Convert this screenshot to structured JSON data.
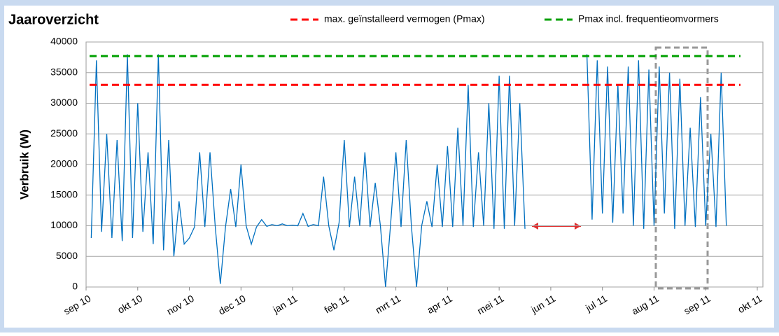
{
  "chart_data": {
    "type": "line",
    "title": "Jaaroverzicht",
    "y_label": "Verbruik (W)",
    "xlim": [
      0,
      13
    ],
    "xticks": [
      {
        "value": 0,
        "label": "sep 10"
      },
      {
        "value": 1,
        "label": "okt 10"
      },
      {
        "value": 2,
        "label": "nov 10"
      },
      {
        "value": 3,
        "label": "dec 10"
      },
      {
        "value": 4,
        "label": "jan 11"
      },
      {
        "value": 5,
        "label": "feb 11"
      },
      {
        "value": 6,
        "label": "mrt 11"
      },
      {
        "value": 7,
        "label": "apr 11"
      },
      {
        "value": 8,
        "label": "mei 11"
      },
      {
        "value": 9,
        "label": "jun 11"
      },
      {
        "value": 10,
        "label": "jul 11"
      },
      {
        "value": 11,
        "label": "aug 11"
      },
      {
        "value": 12,
        "label": "sep 11"
      },
      {
        "value": 13,
        "label": "okt 11"
      }
    ],
    "ylim": [
      0,
      40000
    ],
    "yticks": [
      0,
      5000,
      10000,
      15000,
      20000,
      25000,
      30000,
      35000,
      40000
    ],
    "grid": true,
    "reference_lines": [
      {
        "name": "max. geïnstalleerd vermogen (Pmax)",
        "color": "#ff0000",
        "value": 33000
      },
      {
        "name": "Pmax incl. frequentieomvormers",
        "color": "#00a000",
        "value": 37700
      }
    ],
    "series": [
      {
        "color": "#0070c0",
        "x": [
          0.1,
          0.2,
          0.3,
          0.4,
          0.5,
          0.6,
          0.7,
          0.8,
          0.9,
          1.0,
          1.1,
          1.2,
          1.3,
          1.4,
          1.5,
          1.6,
          1.7,
          1.8,
          1.9,
          2.0,
          2.1,
          2.2,
          2.3,
          2.4,
          2.5,
          2.6,
          2.7,
          2.8,
          2.9,
          3.0,
          3.1,
          3.2,
          3.3,
          3.4,
          3.5,
          3.6,
          3.7,
          3.8,
          3.9,
          4.0,
          4.1,
          4.2,
          4.3,
          4.4,
          4.5,
          4.6,
          4.7,
          4.8,
          4.9,
          5.0,
          5.1,
          5.2,
          5.3,
          5.4,
          5.5,
          5.6,
          5.7,
          5.8,
          5.9,
          6.0,
          6.1,
          6.2,
          6.3,
          6.4,
          6.5,
          6.6,
          6.7,
          6.8,
          6.9,
          7.0,
          7.1,
          7.2,
          7.3,
          7.4,
          7.5,
          7.6,
          7.7,
          7.8,
          7.9,
          8.0,
          8.1,
          8.2,
          8.3,
          8.4,
          8.5,
          8.6,
          8.7,
          8.8,
          8.9,
          9.0,
          9.1,
          9.2,
          9.3,
          9.4,
          9.5,
          9.6,
          9.7,
          9.8,
          9.9,
          10.0,
          10.1,
          10.2,
          10.3,
          10.4,
          10.5,
          10.6,
          10.7,
          10.8,
          10.9,
          11.0,
          11.1,
          11.2,
          11.3,
          11.4,
          11.5,
          11.6,
          11.7,
          11.8,
          11.9,
          12.0,
          12.1,
          12.2,
          12.3,
          12.4
        ],
        "values": [
          8000,
          37000,
          9000,
          25000,
          8000,
          24000,
          7500,
          38000,
          8000,
          30000,
          9000,
          22000,
          7000,
          38000,
          6000,
          24000,
          5000,
          14000,
          7000,
          8000,
          9800,
          22000,
          9800,
          22000,
          10000,
          500,
          9800,
          16000,
          9800,
          20000,
          10000,
          7000,
          9800,
          11000,
          9900,
          10200,
          10000,
          10300,
          10000,
          10100,
          10000,
          12000,
          9900,
          10200,
          10000,
          18000,
          10000,
          6000,
          10500,
          24000,
          9800,
          18000,
          10000,
          22000,
          9800,
          17000,
          10000,
          0,
          10500,
          22000,
          9800,
          24000,
          10000,
          0,
          10000,
          14000,
          9800,
          20000,
          9800,
          23000,
          9800,
          26000,
          10000,
          33000,
          9800,
          22000,
          10000,
          30000,
          9500,
          34500,
          9500,
          34500,
          10000,
          30000,
          9500,
          null,
          null,
          null,
          null,
          null,
          null,
          null,
          null,
          null,
          null,
          null,
          38000,
          11000,
          37000,
          12000,
          36000,
          10500,
          33000,
          12000,
          36000,
          10000,
          37000,
          9500,
          35500,
          10000,
          36000,
          12000,
          35000,
          9500,
          34000,
          10000,
          26000,
          9800,
          31000,
          10000,
          25000,
          9800,
          35000,
          10000
        ]
      }
    ]
  }
}
